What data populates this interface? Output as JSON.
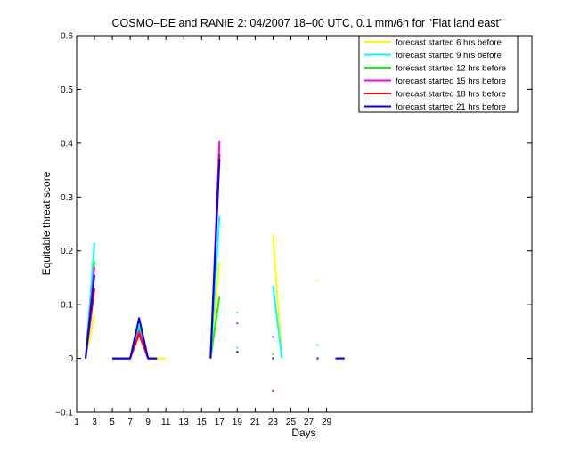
{
  "chart_data": {
    "type": "line",
    "title": "COSMO–DE and RANIE 2: 04/2007 18–00 UTC, 0.1 mm/6h for \"Flat land east\"",
    "xlabel": "Days",
    "ylabel": "Equitable threat score",
    "xlim": [
      1,
      52
    ],
    "ylim": [
      -0.1,
      0.6
    ],
    "xticks": [
      1,
      3,
      5,
      7,
      9,
      11,
      13,
      15,
      17,
      19,
      21,
      23,
      25,
      27,
      29
    ],
    "xtick_labels": [
      "1",
      "3",
      "5",
      "7",
      "9",
      "11",
      "13",
      "15",
      "17",
      "19",
      "21",
      "23",
      "25",
      "27",
      "29"
    ],
    "yticks": [
      -0.1,
      0,
      0.1,
      0.2,
      0.3,
      0.4,
      0.5,
      0.6
    ],
    "ytick_labels": [
      "−0.1",
      "0",
      "0.1",
      "0.2",
      "0.3",
      "0.4",
      "0.5",
      "0.6"
    ],
    "grid": false,
    "legend_position": "top-right",
    "series": [
      {
        "name": "forecast started 6 hrs before",
        "color": "#ffff00",
        "values": [
          [
            2,
            0
          ],
          [
            3,
            0.08
          ],
          null,
          [
            5,
            0
          ],
          [
            6,
            0
          ],
          [
            7,
            0
          ],
          [
            8,
            0.07
          ],
          [
            9,
            0
          ],
          [
            10,
            0
          ],
          [
            11,
            0
          ],
          null,
          [
            16,
            0
          ],
          [
            17,
            0.18
          ],
          null,
          [
            19,
            0.02
          ],
          null,
          [
            23,
            0.23
          ],
          [
            24,
            0
          ],
          null,
          [
            28,
            0.145
          ],
          null,
          [
            30,
            0
          ],
          [
            31,
            0
          ]
        ]
      },
      {
        "name": "forecast started 9 hrs before",
        "color": "#00ffff",
        "values": [
          [
            2,
            0
          ],
          [
            3,
            0.215
          ],
          null,
          [
            5,
            0
          ],
          [
            6,
            0
          ],
          [
            7,
            0
          ],
          [
            8,
            0.06
          ],
          [
            9,
            0
          ],
          [
            10,
            0
          ],
          null,
          [
            16,
            0
          ],
          [
            17,
            0.265
          ],
          null,
          [
            19,
            0.02
          ],
          null,
          [
            23,
            0.135
          ],
          [
            24,
            0
          ],
          null,
          [
            28,
            0.025
          ],
          null,
          [
            30,
            0
          ],
          [
            31,
            0
          ]
        ]
      },
      {
        "name": "forecast started 12 hrs before",
        "color": "#00ff00",
        "values": [
          [
            2,
            0
          ],
          [
            3,
            0.18
          ],
          null,
          [
            5,
            0
          ],
          [
            6,
            0
          ],
          [
            7,
            0
          ],
          [
            8,
            0.055
          ],
          [
            9,
            0
          ],
          [
            10,
            0
          ],
          null,
          [
            16,
            0
          ],
          [
            17,
            0.115
          ],
          null,
          [
            19,
            0.085
          ],
          null,
          [
            23,
            0.008
          ],
          null,
          [
            30,
            0
          ],
          [
            31,
            0
          ]
        ]
      },
      {
        "name": "forecast started 15 hrs before",
        "color": "#ff00ff",
        "values": [
          [
            2,
            0
          ],
          [
            3,
            0.17
          ],
          null,
          [
            5,
            0
          ],
          [
            6,
            0
          ],
          [
            7,
            0
          ],
          [
            8,
            0.05
          ],
          [
            9,
            0
          ],
          [
            10,
            0
          ],
          null,
          [
            16,
            0
          ],
          [
            17,
            0.405
          ],
          null,
          [
            19,
            0.065
          ],
          null,
          [
            23,
            0.04
          ],
          null,
          [
            30,
            0
          ],
          [
            31,
            0
          ]
        ]
      },
      {
        "name": "forecast started 18 hrs before",
        "color": "#ff0000",
        "values": [
          [
            2,
            0
          ],
          [
            3,
            0.13
          ],
          null,
          [
            5,
            0
          ],
          [
            6,
            0
          ],
          [
            7,
            0
          ],
          [
            8,
            0.045
          ],
          [
            9,
            0
          ],
          [
            10,
            0
          ],
          null,
          [
            16,
            0
          ],
          [
            17,
            0.38
          ],
          null,
          [
            19,
            0.012
          ],
          null,
          [
            23,
            -0.06
          ],
          null,
          [
            30,
            0
          ],
          [
            31,
            0
          ]
        ]
      },
      {
        "name": "forecast started 21 hrs before",
        "color": "#0000ff",
        "values": [
          [
            2,
            0
          ],
          [
            3,
            0.155
          ],
          null,
          [
            5,
            0
          ],
          [
            6,
            0
          ],
          [
            7,
            0
          ],
          [
            8,
            0.075
          ],
          [
            9,
            0
          ],
          [
            10,
            0
          ],
          null,
          [
            16,
            0
          ],
          [
            17,
            0.37
          ],
          null,
          [
            19,
            0.012
          ],
          null,
          [
            23,
            0
          ],
          null,
          [
            28,
            0
          ],
          null,
          [
            30,
            0
          ],
          [
            31,
            0
          ]
        ]
      }
    ]
  }
}
